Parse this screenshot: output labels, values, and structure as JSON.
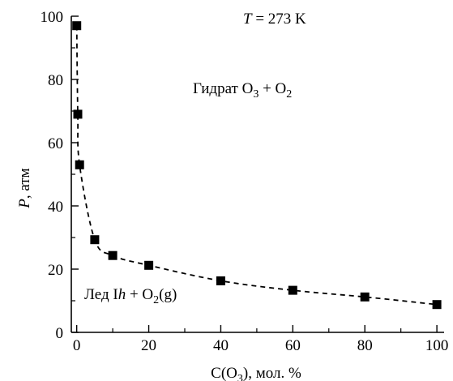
{
  "chart_data": {
    "type": "scatter",
    "xlabel_parts": [
      "C(O",
      "3",
      "), мол. %"
    ],
    "ylabel_parts": [
      "P",
      ", атм"
    ],
    "xlim": [
      -1.5,
      102
    ],
    "ylim": [
      0,
      100
    ],
    "x_ticks": [
      0,
      20,
      40,
      60,
      80,
      100
    ],
    "x_minor_ticks": [
      10,
      30,
      50,
      70,
      90
    ],
    "y_ticks": [
      0,
      20,
      40,
      60,
      80,
      100
    ],
    "y_minor_ticks": [
      10,
      30,
      50,
      70,
      90
    ],
    "grid": false,
    "series": [
      {
        "marker": "square",
        "line": "dashed",
        "color": "#000000",
        "points": [
          {
            "x": 0,
            "y": 97
          },
          {
            "x": 0.3,
            "y": 69
          },
          {
            "x": 0.8,
            "y": 53
          },
          {
            "x": 5,
            "y": 29.3
          },
          {
            "x": 10,
            "y": 24.3
          },
          {
            "x": 20,
            "y": 21.2
          },
          {
            "x": 40,
            "y": 16.3
          },
          {
            "x": 60,
            "y": 13.3
          },
          {
            "x": 80,
            "y": 11.2
          },
          {
            "x": 100,
            "y": 8.8
          }
        ]
      }
    ],
    "annotations": {
      "temperature": {
        "italic": "T",
        "rest": " = 273 K"
      },
      "hydrate": {
        "parts": [
          "Гидрат O",
          "3",
          " + O",
          "2"
        ]
      },
      "ice": {
        "parts": [
          "Лед I",
          "h",
          " + O",
          "2",
          "(g)"
        ]
      }
    }
  }
}
